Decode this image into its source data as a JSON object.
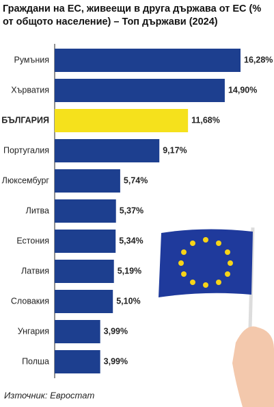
{
  "chart_data": {
    "type": "bar",
    "orientation": "horizontal",
    "title": "Граждани на ЕС, живеещи в друга държава от ЕС (% от общото население) – Топ държави (2024)",
    "categories": [
      "Румъния",
      "Хърватия",
      "БЪЛГАРИЯ",
      "Португалия",
      "Люксембург",
      "Литва",
      "Естония",
      "Латвия",
      "Словакия",
      "Унгария",
      "Полша"
    ],
    "values": [
      16.28,
      14.9,
      11.68,
      9.17,
      5.74,
      5.37,
      5.34,
      5.19,
      5.1,
      3.99,
      3.99
    ],
    "value_labels": [
      "16,28%",
      "14,90%",
      "11,68%",
      "9,17%",
      "5,74%",
      "5,37%",
      "5,34%",
      "5,19%",
      "5,10%",
      "3,99%",
      "3,99%"
    ],
    "colors": [
      "#1d3f8f",
      "#1d3f8f",
      "#f5e11c",
      "#1d3f8f",
      "#1d3f8f",
      "#1d3f8f",
      "#1d3f8f",
      "#1d3f8f",
      "#1d3f8f",
      "#1d3f8f",
      "#1d3f8f"
    ],
    "source": "Източник: Евростат"
  }
}
